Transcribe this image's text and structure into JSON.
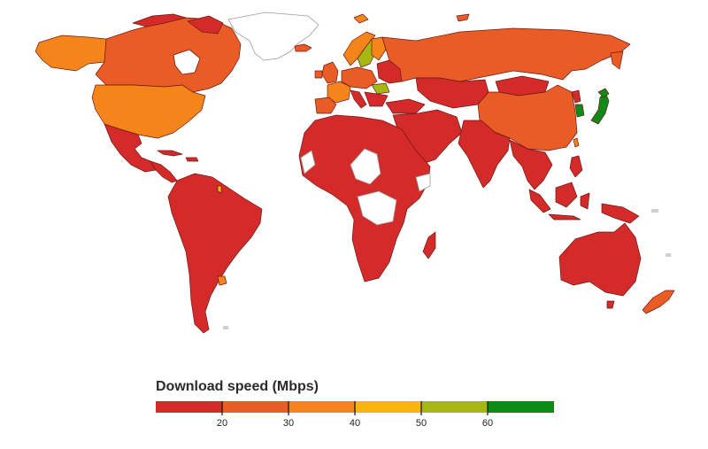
{
  "legend": {
    "title": "Download speed (Mbps)",
    "bins": [
      {
        "color": "#d42a2a"
      },
      {
        "color": "#e95c26"
      },
      {
        "color": "#f5841a"
      },
      {
        "color": "#f8b60c"
      },
      {
        "color": "#a6b712"
      },
      {
        "color": "#0e8a19"
      }
    ],
    "tick_labels": [
      "20",
      "30",
      "40",
      "50",
      "60"
    ]
  },
  "colors": {
    "under_20": "#d42a2a",
    "20_30": "#e95c26",
    "30_40": "#f5841a",
    "40_50": "#f8b60c",
    "50_60": "#a6b712",
    "over_60": "#0e8a19",
    "no_data": "#ffffff"
  }
}
